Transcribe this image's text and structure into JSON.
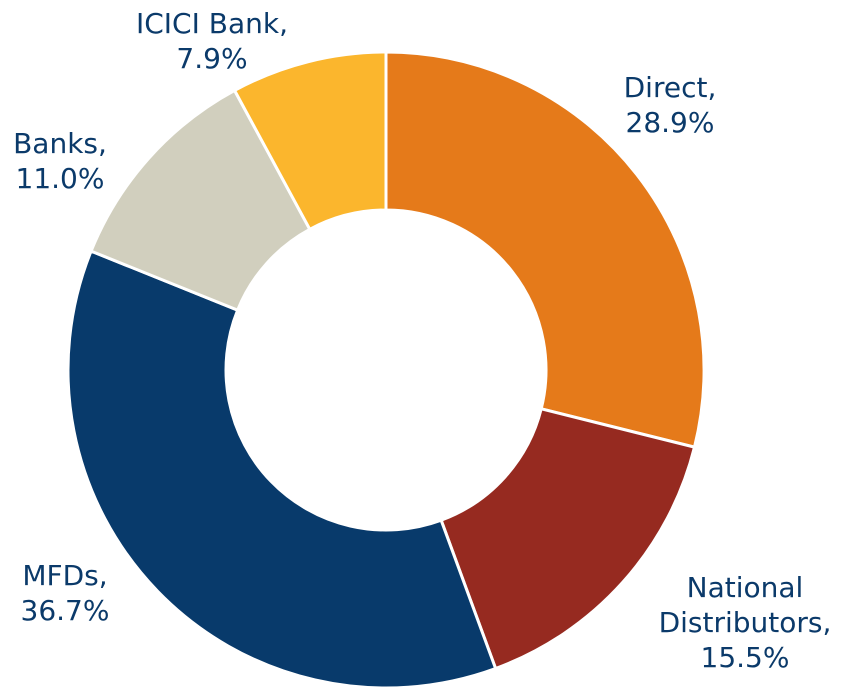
{
  "chart_data": {
    "type": "pie",
    "categories": [
      "Direct,",
      "National Distributors,",
      "MFDs,",
      "Banks,",
      "ICICI Bank,"
    ],
    "values": [
      28.9,
      15.5,
      36.7,
      11.0,
      7.9
    ],
    "value_labels": [
      "28.9%",
      "15.5%",
      "36.7%",
      "11.0%",
      "7.9%"
    ],
    "colors": [
      "#e57a1a",
      "#962a20",
      "#083a6b",
      "#d1cfbe",
      "#fbb62d"
    ]
  }
}
